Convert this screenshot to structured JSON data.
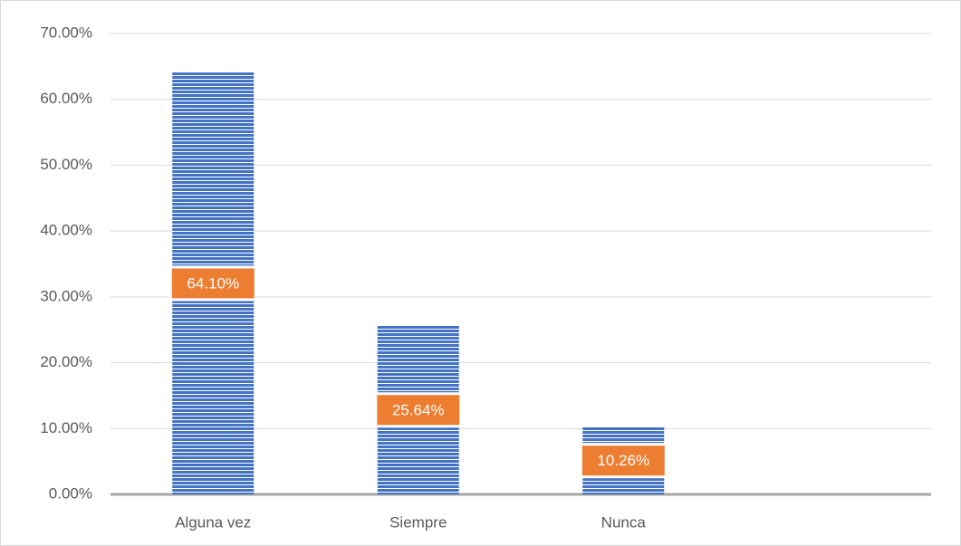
{
  "chart_data": {
    "type": "bar",
    "categories": [
      "Alguna vez",
      "Siempre",
      "Nunca",
      null
    ],
    "values": [
      64.1,
      25.64,
      10.26,
      null
    ],
    "value_labels": [
      "64.10%",
      "25.64%",
      "10.26%",
      null
    ],
    "color": "#4472c4",
    "label_color": "#ed7d31",
    "ylim": [
      0,
      70
    ],
    "yticks": [
      {
        "value": 0,
        "label": "0.00%"
      },
      {
        "value": 10,
        "label": "10.00%"
      },
      {
        "value": 20,
        "label": "20.00%"
      },
      {
        "value": 30,
        "label": "30.00%"
      },
      {
        "value": 40,
        "label": "40.00%"
      },
      {
        "value": 50,
        "label": "50.00%"
      },
      {
        "value": 60,
        "label": "60.00%"
      },
      {
        "value": 70,
        "label": "70.00%"
      }
    ],
    "grid": true
  }
}
